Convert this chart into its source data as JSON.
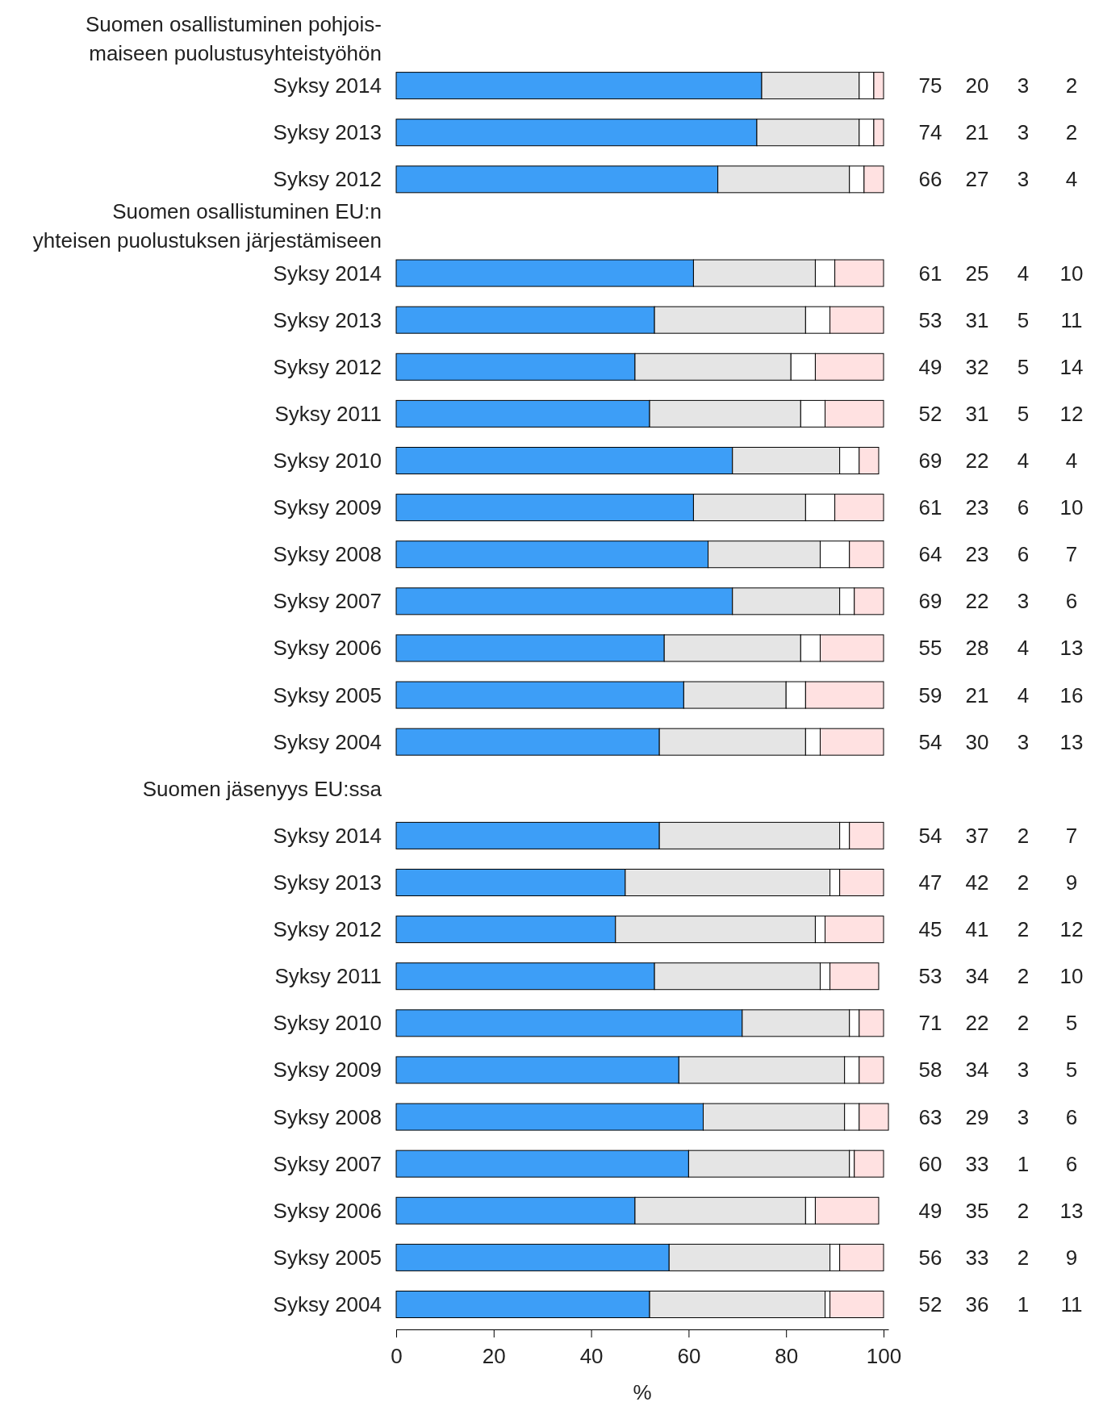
{
  "chart_data": {
    "type": "bar",
    "orientation": "horizontal",
    "stacked": true,
    "data_labels": true,
    "xlabel": "%",
    "xlim": [
      0,
      101
    ],
    "xticks": [
      0,
      20,
      40,
      60,
      80,
      100
    ],
    "grid": false,
    "categories": [
      "Suomen osallistuminen pohjois-\nmaiseen puolustusyhteistyöhön",
      "Syksy 2014",
      "Syksy 2013",
      "Syksy 2012",
      "Suomen osallistuminen EU:n\nyhteisen puolustuksen järjestämiseen",
      "Syksy 2014",
      "Syksy 2013",
      "Syksy 2012",
      "Syksy 2011",
      "Syksy 2010",
      "Syksy 2009",
      "Syksy 2008",
      "Syksy 2007",
      "Syksy 2006",
      "Syksy 2005",
      "Syksy 2004",
      "Suomen jäsenyys EU:ssa",
      "Syksy 2014",
      "Syksy 2013",
      "Syksy 2012",
      "Syksy 2011",
      "Syksy 2010",
      "Syksy 2009",
      "Syksy 2008",
      "Syksy 2007",
      "Syksy 2006",
      "Syksy 2005",
      "Syksy 2004"
    ],
    "series": [
      {
        "color": "#3d9ef7",
        "values": [
          null,
          75,
          74,
          66,
          null,
          61,
          53,
          49,
          52,
          69,
          61,
          64,
          69,
          55,
          59,
          54,
          null,
          54,
          47,
          45,
          53,
          71,
          58,
          63,
          60,
          49,
          56,
          52
        ]
      },
      {
        "color": "#e5e5e5",
        "values": [
          null,
          20,
          21,
          27,
          null,
          25,
          31,
          32,
          31,
          22,
          23,
          23,
          22,
          28,
          21,
          30,
          null,
          37,
          42,
          41,
          34,
          22,
          34,
          29,
          33,
          35,
          33,
          36
        ]
      },
      {
        "color": "#ffffff",
        "values": [
          null,
          3,
          3,
          3,
          null,
          4,
          5,
          5,
          5,
          4,
          6,
          6,
          3,
          4,
          4,
          3,
          null,
          2,
          2,
          2,
          2,
          2,
          3,
          3,
          1,
          2,
          2,
          1
        ]
      },
      {
        "color": "#ffe1e1",
        "values": [
          null,
          2,
          2,
          4,
          null,
          10,
          11,
          14,
          12,
          4,
          10,
          7,
          6,
          13,
          16,
          13,
          null,
          7,
          9,
          12,
          10,
          5,
          5,
          6,
          6,
          13,
          9,
          11
        ]
      }
    ]
  }
}
